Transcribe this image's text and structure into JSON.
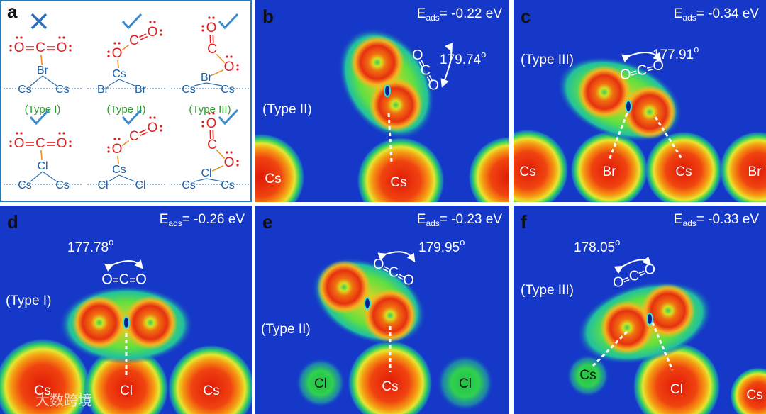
{
  "panel_a": {
    "label": "a",
    "structures": [
      {
        "atoms": [
          "O",
          "C",
          "O",
          "Br",
          "Cs",
          "Cs"
        ],
        "type": "(Type I)"
      },
      {
        "atoms": [
          "O",
          "C",
          "O",
          "Cs",
          "Br",
          "Br"
        ],
        "type": "(Type II)"
      },
      {
        "atoms": [
          "O",
          "C",
          "O",
          "Br",
          "Cs",
          "Cs"
        ],
        "type": "(Type III)"
      },
      {
        "atoms": [
          "O",
          "C",
          "O",
          "Cl",
          "Cs",
          "Cs"
        ]
      },
      {
        "atoms": [
          "O",
          "C",
          "O",
          "Cs",
          "Cl",
          "Cl"
        ]
      },
      {
        "atoms": [
          "O",
          "C",
          "O",
          "Cl",
          "Cs",
          "Cs"
        ]
      }
    ]
  },
  "energy_symbol": "E",
  "energy_subscript": "ads",
  "degree_mark": "o",
  "molecule_atoms": [
    "O",
    "C",
    "O"
  ],
  "panels": [
    {
      "label": "b",
      "energy": "= -0.22 eV",
      "angle": "179.74",
      "type": "(Type II)",
      "atoms": [
        "Cs",
        "Cs"
      ]
    },
    {
      "label": "c",
      "energy": "= -0.34 eV",
      "angle": "177.91",
      "type": "(Type III)",
      "atoms": [
        "Cs",
        "Br",
        "Cs",
        "Br"
      ]
    },
    {
      "label": "d",
      "energy": "= -0.26 eV",
      "angle": "177.78",
      "type": "(Type I)",
      "atoms": [
        "Cs",
        "Cl",
        "Cs"
      ]
    },
    {
      "label": "e",
      "energy": "= -0.23 eV",
      "angle": "179.95",
      "type": "(Type II)",
      "atoms": [
        "Cl",
        "Cs",
        "Cl"
      ]
    },
    {
      "label": "f",
      "energy": "= -0.33 eV",
      "angle": "178.05",
      "type": "(Type III)",
      "atoms": [
        "Cs",
        "Cl",
        "Cs"
      ]
    }
  ],
  "watermark": "大数跨境"
}
